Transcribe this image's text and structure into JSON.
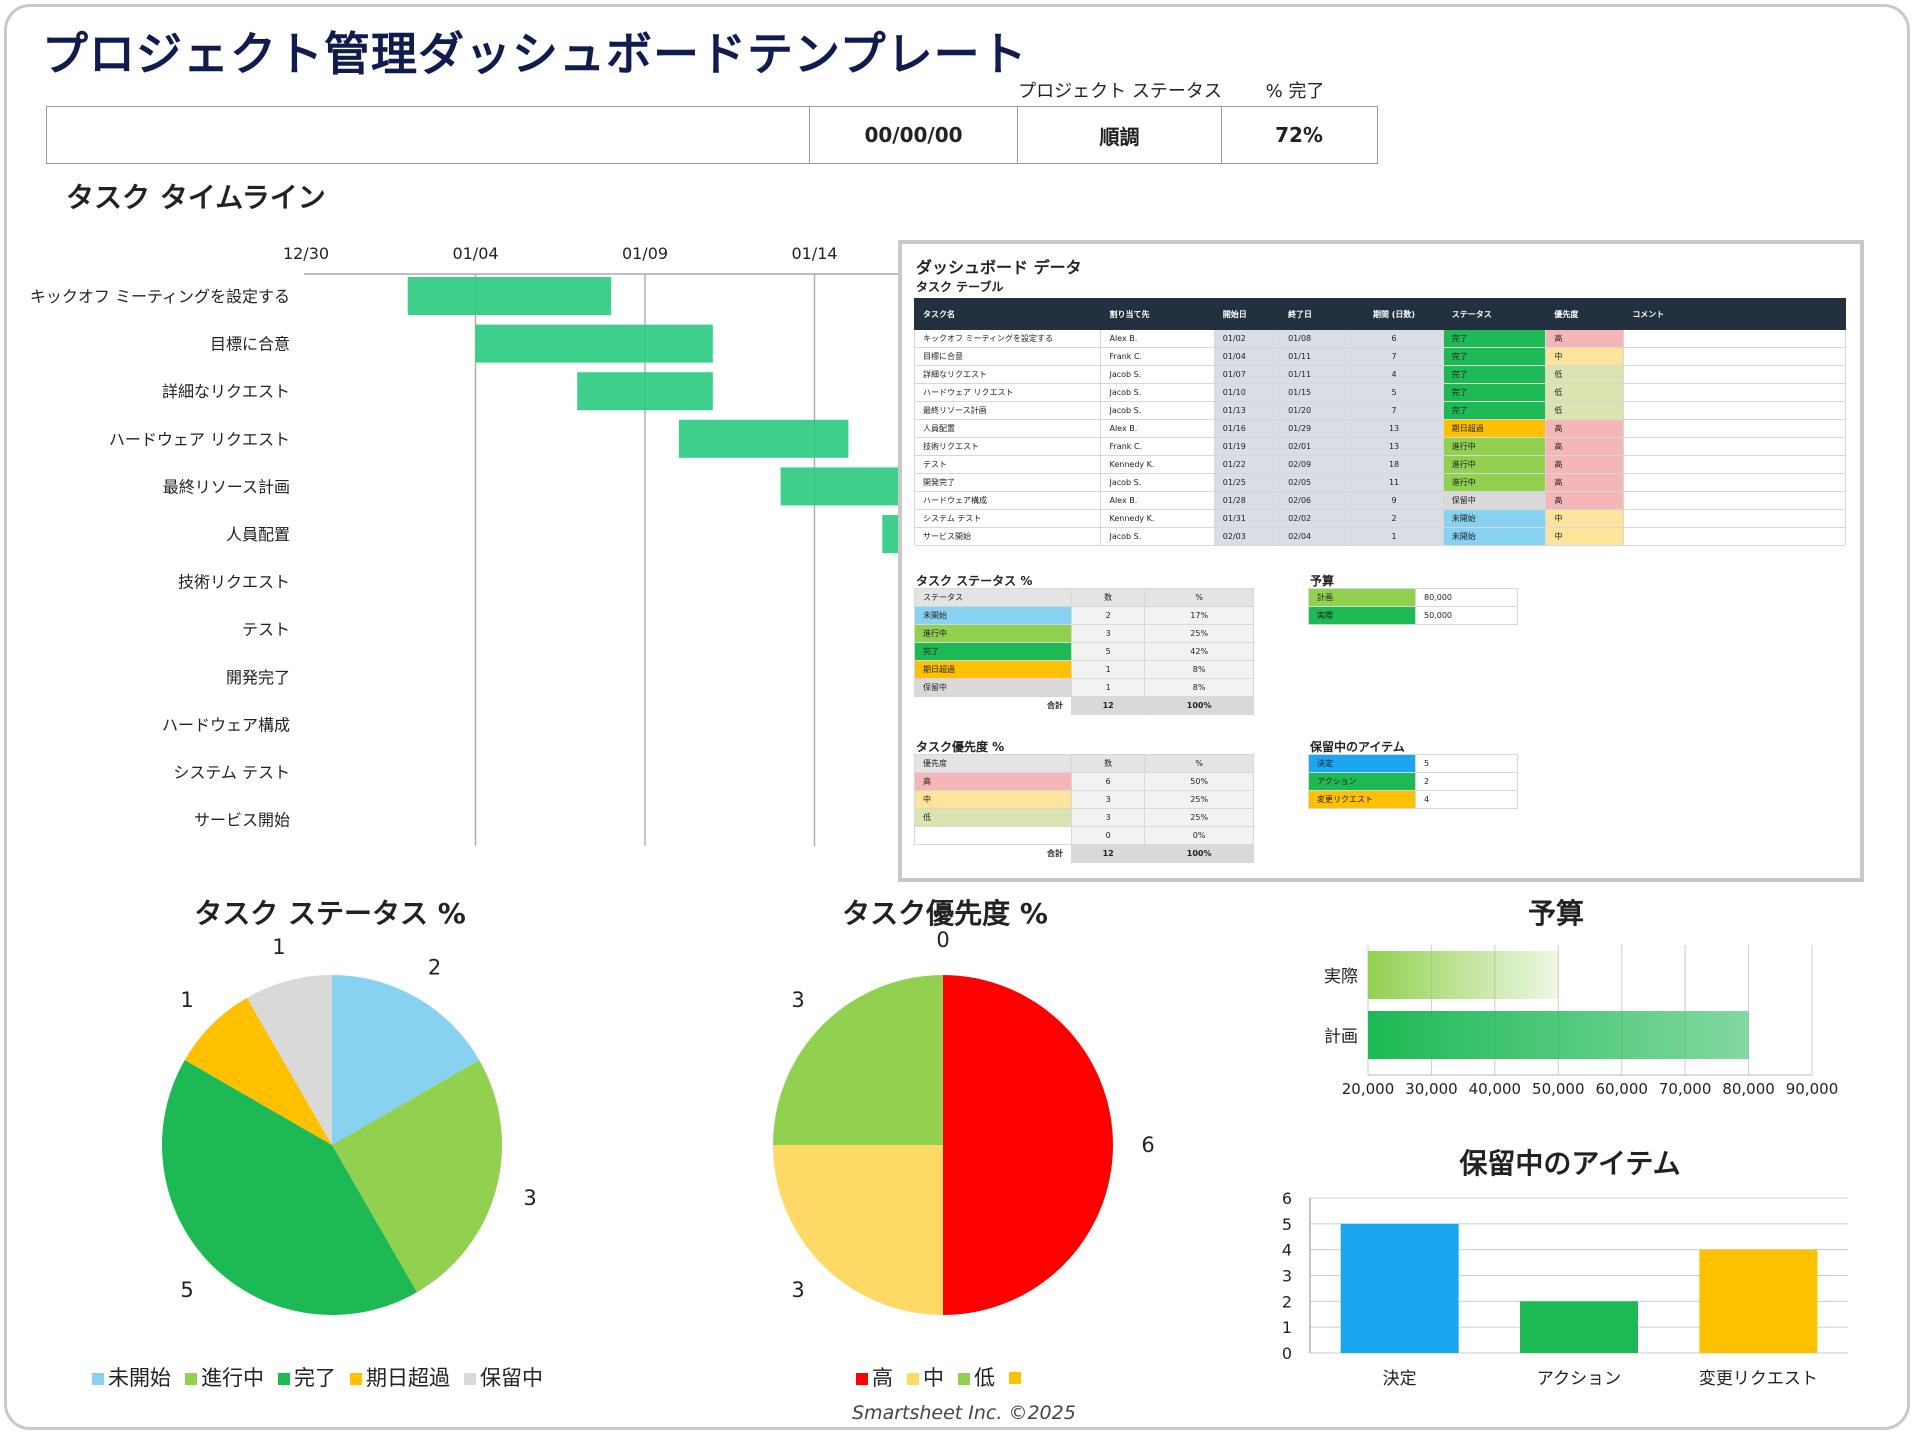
{
  "title": "プロジェクト管理ダッシュボードテンプレート",
  "header": {
    "labels": [
      "プロジェクト ステータス",
      "% 完了"
    ],
    "values": [
      "",
      "00/00/00",
      "順調",
      "72%"
    ]
  },
  "timeline": {
    "title": "タスク タイムライン",
    "date_ticks": [
      "12/30",
      "01/04",
      "01/09",
      "01/14"
    ],
    "tasks": [
      {
        "name": "キックオフ ミーティングを設定する",
        "start": "01/02",
        "end": "01/08"
      },
      {
        "name": "目標に合意",
        "start": "01/04",
        "end": "01/11"
      },
      {
        "name": "詳細なリクエスト",
        "start": "01/07",
        "end": "01/11"
      },
      {
        "name": "ハードウェア リクエスト",
        "start": "01/10",
        "end": "01/15"
      },
      {
        "name": "最終リソース計画",
        "start": "01/13",
        "end": "01/20"
      },
      {
        "name": "人員配置",
        "start": "01/16",
        "end": "01/29"
      },
      {
        "name": "技術リクエスト",
        "start": "01/19",
        "end": "02/01"
      },
      {
        "name": "テスト",
        "start": "01/22",
        "end": "02/09"
      },
      {
        "name": "開発完了",
        "start": "01/25",
        "end": "02/05"
      },
      {
        "name": "ハードウェア構成",
        "start": "01/28",
        "end": "02/06"
      },
      {
        "name": "システム テスト",
        "start": "01/31",
        "end": "02/02"
      },
      {
        "name": "サービス開始",
        "start": "02/03",
        "end": "02/04"
      }
    ]
  },
  "dashboard_data": {
    "title": "ダッシュボード データ",
    "task_table_title": "タスク テーブル",
    "columns": [
      "タスク名",
      "割り当て先",
      "開始日",
      "終了日",
      "期間\n(日数)",
      "ステータス",
      "優先度",
      "コメント"
    ],
    "rows": [
      [
        "キックオフ ミーティングを設定する",
        "Alex B.",
        "01/02",
        "01/08",
        "6",
        "完了",
        "高",
        ""
      ],
      [
        "目標に合意",
        "Frank C.",
        "01/04",
        "01/11",
        "7",
        "完了",
        "中",
        ""
      ],
      [
        "詳細なリクエスト",
        "Jacob S.",
        "01/07",
        "01/11",
        "4",
        "完了",
        "低",
        ""
      ],
      [
        "ハードウェア リクエスト",
        "Jacob S.",
        "01/10",
        "01/15",
        "5",
        "完了",
        "低",
        ""
      ],
      [
        "最終リソース計画",
        "Jacob S.",
        "01/13",
        "01/20",
        "7",
        "完了",
        "低",
        ""
      ],
      [
        "人員配置",
        "Alex B.",
        "01/16",
        "01/29",
        "13",
        "期日超過",
        "高",
        ""
      ],
      [
        "技術リクエスト",
        "Frank C.",
        "01/19",
        "02/01",
        "13",
        "進行中",
        "高",
        ""
      ],
      [
        "テスト",
        "Kennedy K.",
        "01/22",
        "02/09",
        "18",
        "進行中",
        "高",
        ""
      ],
      [
        "開発完了",
        "Jacob S.",
        "01/25",
        "02/05",
        "11",
        "進行中",
        "高",
        ""
      ],
      [
        "ハードウェア構成",
        "Alex B.",
        "01/28",
        "02/06",
        "9",
        "保留中",
        "高",
        ""
      ],
      [
        "システム テスト",
        "Kennedy K.",
        "01/31",
        "02/02",
        "2",
        "未開始",
        "中",
        ""
      ],
      [
        "サービス開始",
        "Jacob S.",
        "02/03",
        "02/04",
        "1",
        "未開始",
        "中",
        ""
      ]
    ],
    "status_title": "タスク ステータス %",
    "status_header": [
      "ステータス",
      "数",
      "%"
    ],
    "status_rows": [
      [
        "未開始",
        "2",
        "17%"
      ],
      [
        "進行中",
        "3",
        "25%"
      ],
      [
        "完了",
        "5",
        "42%"
      ],
      [
        "期日超過",
        "1",
        "8%"
      ],
      [
        "保留中",
        "1",
        "8%"
      ]
    ],
    "status_total": [
      "合計",
      "12",
      "100%"
    ],
    "priority_title": "タスク優先度 %",
    "priority_header": [
      "優先度",
      "数",
      "%"
    ],
    "priority_rows": [
      [
        "高",
        "6",
        "50%"
      ],
      [
        "中",
        "3",
        "25%"
      ],
      [
        "低",
        "3",
        "25%"
      ],
      [
        "",
        "0",
        "0%"
      ]
    ],
    "priority_total": [
      "合計",
      "12",
      "100%"
    ],
    "budget_title": "予算",
    "budget_rows": [
      [
        "計画",
        "80,000"
      ],
      [
        "実際",
        "50,000"
      ]
    ],
    "pending_title": "保留中のアイテム",
    "pending_rows": [
      [
        "決定",
        "5"
      ],
      [
        "アクション",
        "2"
      ],
      [
        "変更リクエスト",
        "4"
      ]
    ]
  },
  "colors": {
    "not_started": "#87d2f0",
    "in_progress": "#92d050",
    "done": "#1db954",
    "overdue": "#ffc000",
    "on_hold": "#d9d9d9",
    "high": "#ff0000",
    "medium": "#ffd966",
    "low": "#92d050",
    "high_cell": "#f4b6b6",
    "medium_cell": "#fde49c",
    "low_cell": "#d9e4b0",
    "gantt_bar": "#2ecc80",
    "decision": "#1ba6f0",
    "action": "#1db954",
    "change": "#ffc000"
  },
  "chart_data": [
    {
      "type": "pie",
      "title": "タスク ステータス %",
      "categories": [
        "未開始",
        "進行中",
        "完了",
        "期日超過",
        "保留中"
      ],
      "values": [
        2,
        3,
        5,
        1,
        1
      ]
    },
    {
      "type": "pie",
      "title": "タスク優先度 %",
      "categories": [
        "高",
        "中",
        "低",
        ""
      ],
      "values": [
        6,
        3,
        3,
        0
      ]
    },
    {
      "type": "bar",
      "orientation": "horizontal",
      "title": "予算",
      "categories": [
        "実際",
        "計画"
      ],
      "values": [
        50000,
        80000
      ],
      "xlim": [
        20000,
        90000
      ],
      "x_ticks": [
        "20,000",
        "30,000",
        "40,000",
        "50,000",
        "60,000",
        "70,000",
        "80,000",
        "90,000"
      ]
    },
    {
      "type": "bar",
      "title": "保留中のアイテム",
      "categories": [
        "決定",
        "アクション",
        "変更リクエスト"
      ],
      "values": [
        5,
        2,
        4
      ],
      "ylim": [
        0,
        6
      ],
      "y_ticks": [
        "0",
        "1",
        "2",
        "3",
        "4",
        "5",
        "6"
      ]
    }
  ],
  "footer": "Smartsheet Inc. ©2025"
}
